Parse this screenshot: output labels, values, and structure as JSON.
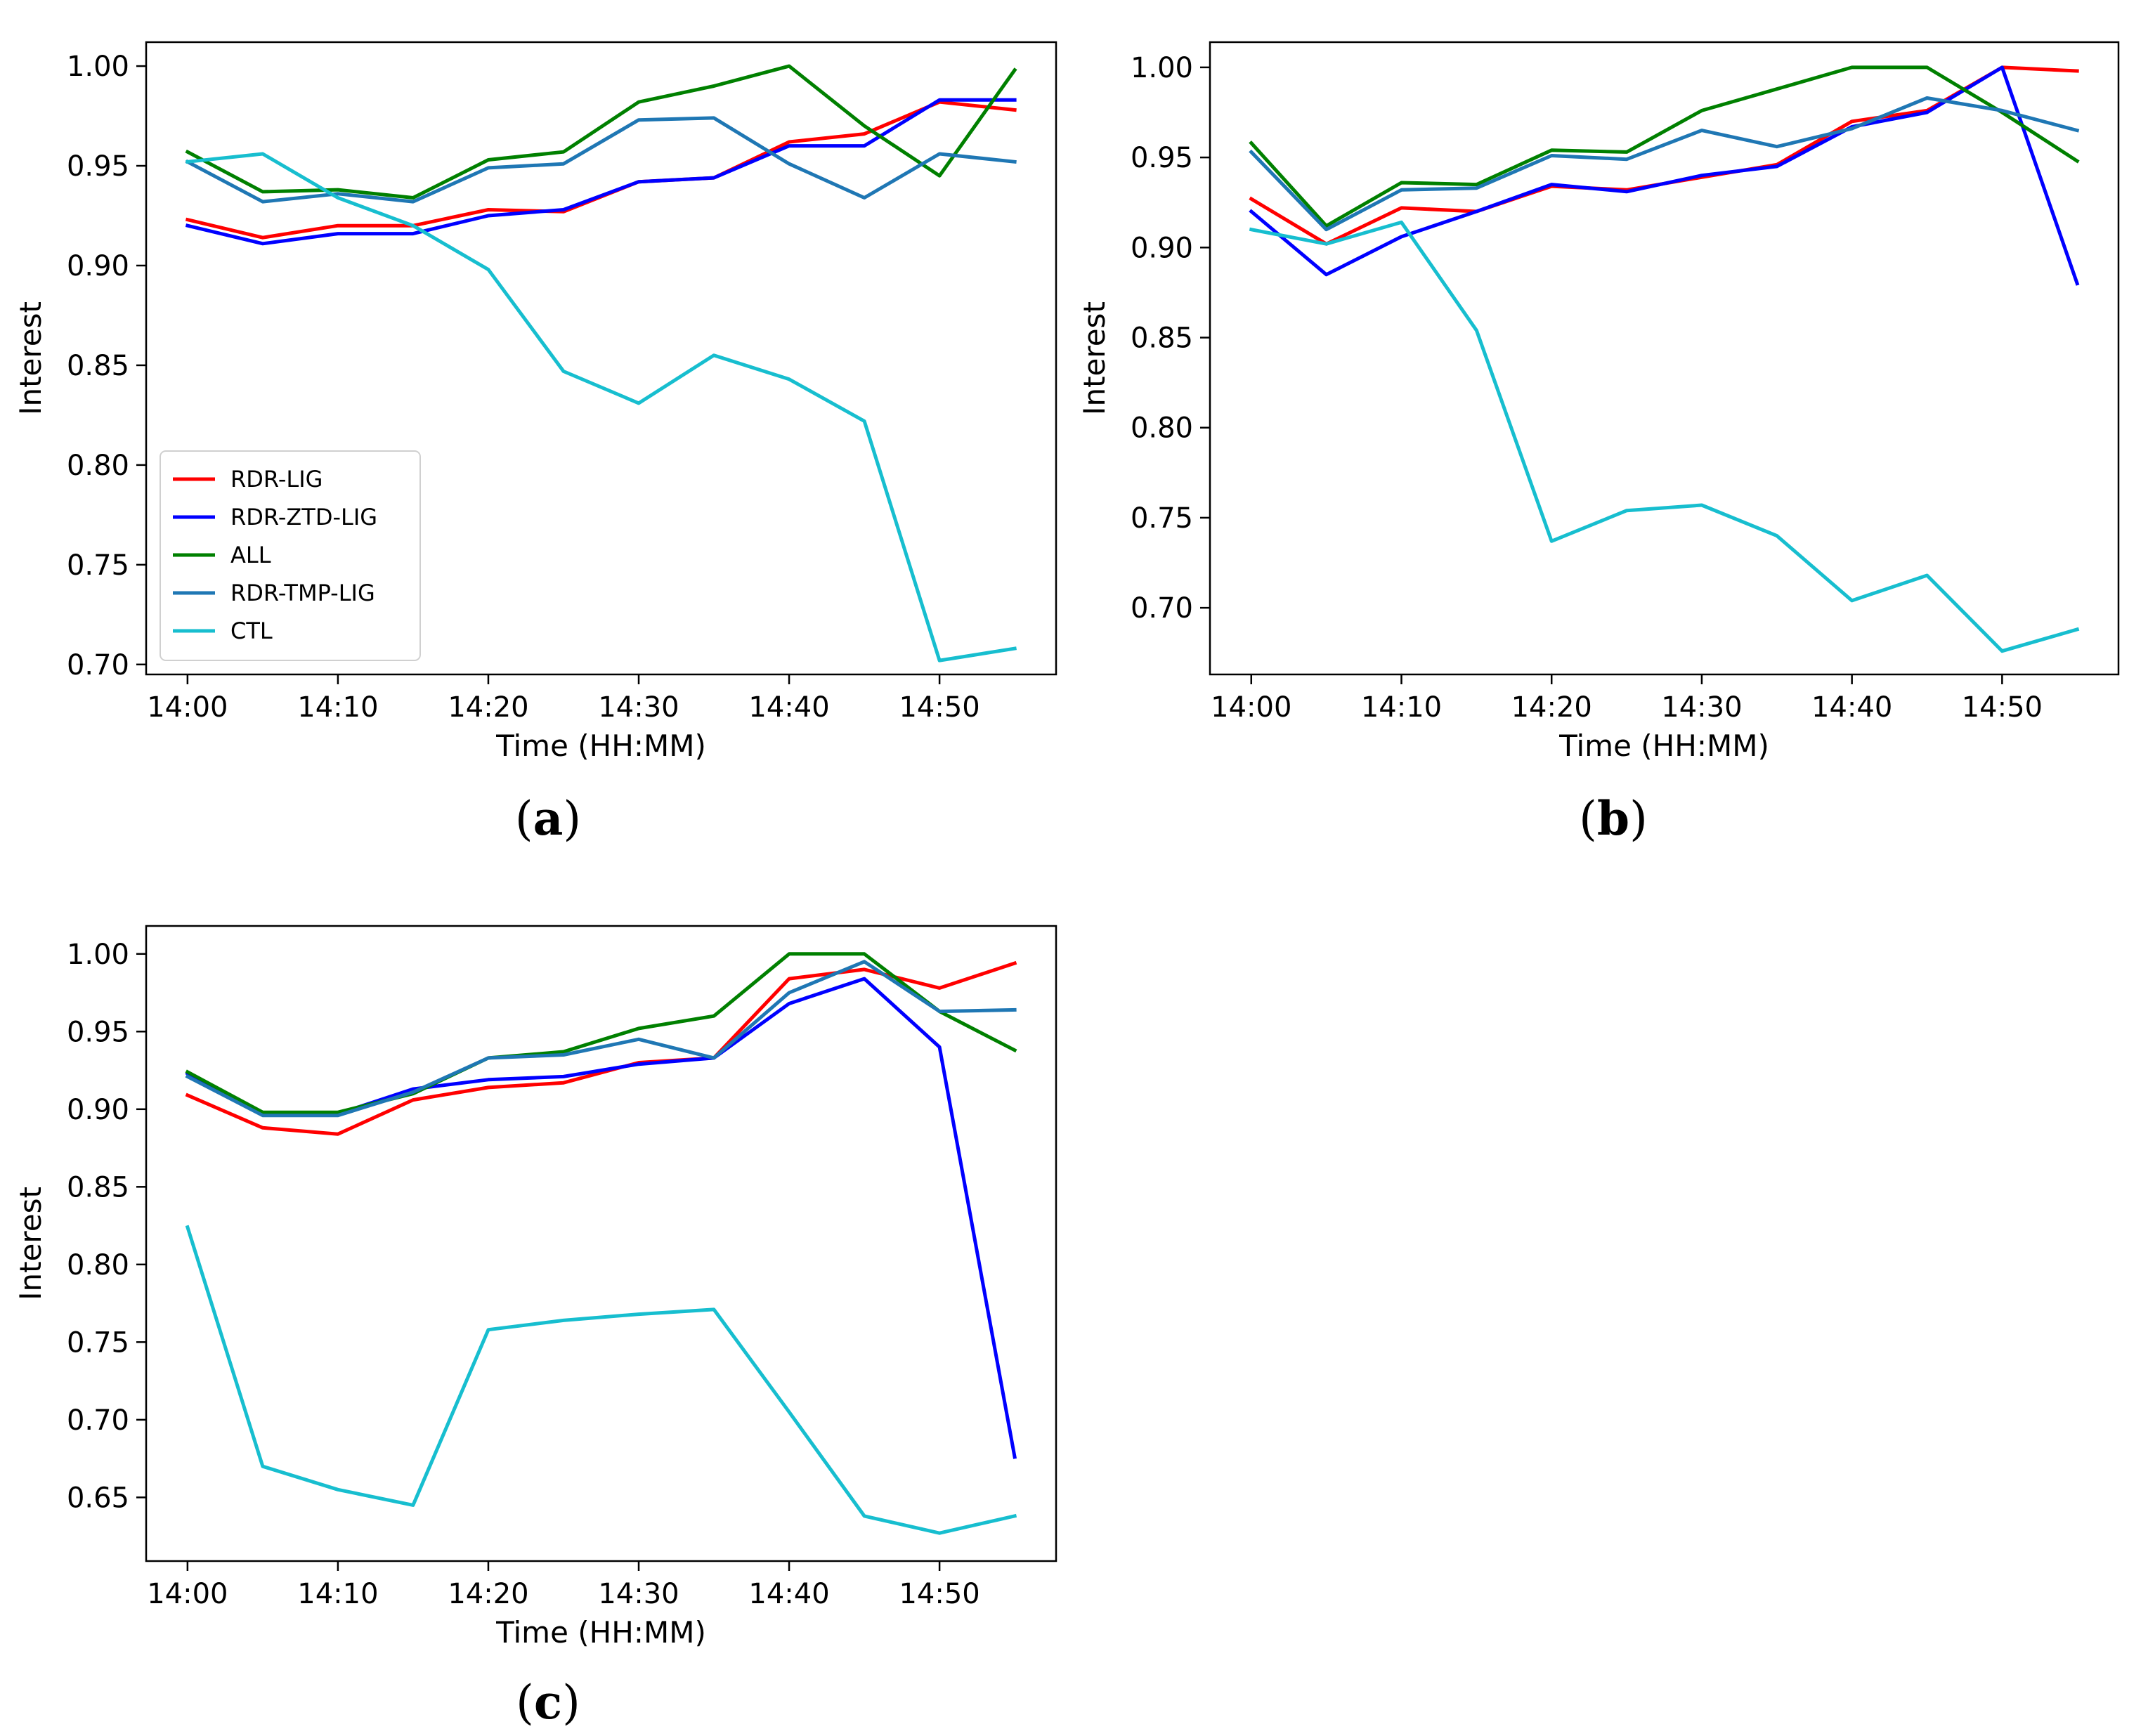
{
  "chart_data": [
    {
      "type": "line",
      "panel_label": "a",
      "xlabel": "Time (HH:MM)",
      "ylabel": "Interest",
      "x": [
        "14:00",
        "14:05",
        "14:10",
        "14:15",
        "14:20",
        "14:25",
        "14:30",
        "14:35",
        "14:40",
        "14:45",
        "14:50",
        "14:55"
      ],
      "xticks": [
        "14:00",
        "14:10",
        "14:20",
        "14:30",
        "14:40",
        "14:50"
      ],
      "ylim": [
        0.695,
        1.012
      ],
      "yticks": [
        0.7,
        0.75,
        0.8,
        0.85,
        0.9,
        0.95,
        1.0
      ],
      "legend": {
        "show": true,
        "placement": "lower-left"
      },
      "grid": false,
      "series": [
        {
          "name": "RDR-LIG",
          "color": "#ff0000",
          "values": [
            0.923,
            0.914,
            0.92,
            0.92,
            0.928,
            0.927,
            0.942,
            0.944,
            0.962,
            0.966,
            0.982,
            0.978
          ]
        },
        {
          "name": "RDR-ZTD-LIG",
          "color": "#0000ff",
          "values": [
            0.92,
            0.911,
            0.916,
            0.916,
            0.925,
            0.928,
            0.942,
            0.944,
            0.96,
            0.96,
            0.983,
            0.983
          ]
        },
        {
          "name": "ALL",
          "color": "#008000",
          "values": [
            0.957,
            0.937,
            0.938,
            0.934,
            0.953,
            0.957,
            0.982,
            0.99,
            1.0,
            0.97,
            0.945,
            0.998
          ]
        },
        {
          "name": "RDR-TMP-LIG",
          "color": "#1f77b4",
          "values": [
            0.952,
            0.932,
            0.936,
            0.932,
            0.949,
            0.951,
            0.973,
            0.974,
            0.951,
            0.934,
            0.956,
            0.952
          ]
        },
        {
          "name": "CTL",
          "color": "#17becf",
          "values": [
            0.952,
            0.956,
            0.934,
            0.92,
            0.898,
            0.847,
            0.831,
            0.855,
            0.843,
            0.822,
            0.702,
            0.708
          ]
        }
      ]
    },
    {
      "type": "line",
      "panel_label": "b",
      "xlabel": "Time (HH:MM)",
      "ylabel": "Interest",
      "x": [
        "14:00",
        "14:05",
        "14:10",
        "14:15",
        "14:20",
        "14:25",
        "14:30",
        "14:35",
        "14:40",
        "14:45",
        "14:50",
        "14:55"
      ],
      "xticks": [
        "14:00",
        "14:10",
        "14:20",
        "14:30",
        "14:40",
        "14:50"
      ],
      "ylim": [
        0.663,
        1.014
      ],
      "yticks": [
        0.7,
        0.75,
        0.8,
        0.85,
        0.9,
        0.95,
        1.0
      ],
      "legend": {
        "show": false
      },
      "grid": false,
      "series": [
        {
          "name": "RDR-LIG",
          "color": "#ff0000",
          "values": [
            0.927,
            0.902,
            0.922,
            0.92,
            0.934,
            0.932,
            0.939,
            0.946,
            0.97,
            0.976,
            1.0,
            0.998
          ]
        },
        {
          "name": "RDR-ZTD-LIG",
          "color": "#0000ff",
          "values": [
            0.92,
            0.885,
            0.906,
            0.92,
            0.935,
            0.931,
            0.94,
            0.945,
            0.967,
            0.975,
            1.0,
            0.88
          ]
        },
        {
          "name": "ALL",
          "color": "#008000",
          "values": [
            0.958,
            0.912,
            0.936,
            0.935,
            0.954,
            0.953,
            0.976,
            0.988,
            1.0,
            1.0,
            0.975,
            0.948
          ]
        },
        {
          "name": "RDR-TMP-LIG",
          "color": "#1f77b4",
          "values": [
            0.953,
            0.91,
            0.932,
            0.933,
            0.951,
            0.949,
            0.965,
            0.956,
            0.966,
            0.983,
            0.976,
            0.965
          ]
        },
        {
          "name": "CTL",
          "color": "#17becf",
          "values": [
            0.91,
            0.902,
            0.914,
            0.854,
            0.737,
            0.754,
            0.757,
            0.74,
            0.704,
            0.718,
            0.676,
            0.688
          ]
        }
      ]
    },
    {
      "type": "line",
      "panel_label": "c",
      "xlabel": "Time (HH:MM)",
      "ylabel": "Interest",
      "x": [
        "14:00",
        "14:05",
        "14:10",
        "14:15",
        "14:20",
        "14:25",
        "14:30",
        "14:35",
        "14:40",
        "14:45",
        "14:50",
        "14:55"
      ],
      "xticks": [
        "14:00",
        "14:10",
        "14:20",
        "14:30",
        "14:40",
        "14:50"
      ],
      "ylim": [
        0.609,
        1.018
      ],
      "yticks": [
        0.65,
        0.7,
        0.75,
        0.8,
        0.85,
        0.9,
        0.95,
        1.0
      ],
      "legend": {
        "show": false
      },
      "grid": false,
      "series": [
        {
          "name": "RDR-LIG",
          "color": "#ff0000",
          "values": [
            0.909,
            0.888,
            0.884,
            0.906,
            0.914,
            0.917,
            0.93,
            0.933,
            0.984,
            0.99,
            0.978,
            0.994
          ]
        },
        {
          "name": "RDR-ZTD-LIG",
          "color": "#0000ff",
          "values": [
            0.923,
            0.897,
            0.897,
            0.913,
            0.919,
            0.921,
            0.929,
            0.933,
            0.968,
            0.984,
            0.94,
            0.676
          ]
        },
        {
          "name": "ALL",
          "color": "#008000",
          "values": [
            0.924,
            0.898,
            0.898,
            0.91,
            0.933,
            0.937,
            0.952,
            0.96,
            1.0,
            1.0,
            0.963,
            0.938
          ]
        },
        {
          "name": "RDR-TMP-LIG",
          "color": "#1f77b4",
          "values": [
            0.921,
            0.896,
            0.896,
            0.911,
            0.933,
            0.935,
            0.945,
            0.933,
            0.975,
            0.995,
            0.963,
            0.964
          ]
        },
        {
          "name": "CTL",
          "color": "#17becf",
          "values": [
            0.824,
            0.67,
            0.655,
            0.645,
            0.758,
            0.764,
            0.768,
            0.771,
            0.705,
            0.638,
            0.627,
            0.638
          ]
        }
      ]
    }
  ]
}
